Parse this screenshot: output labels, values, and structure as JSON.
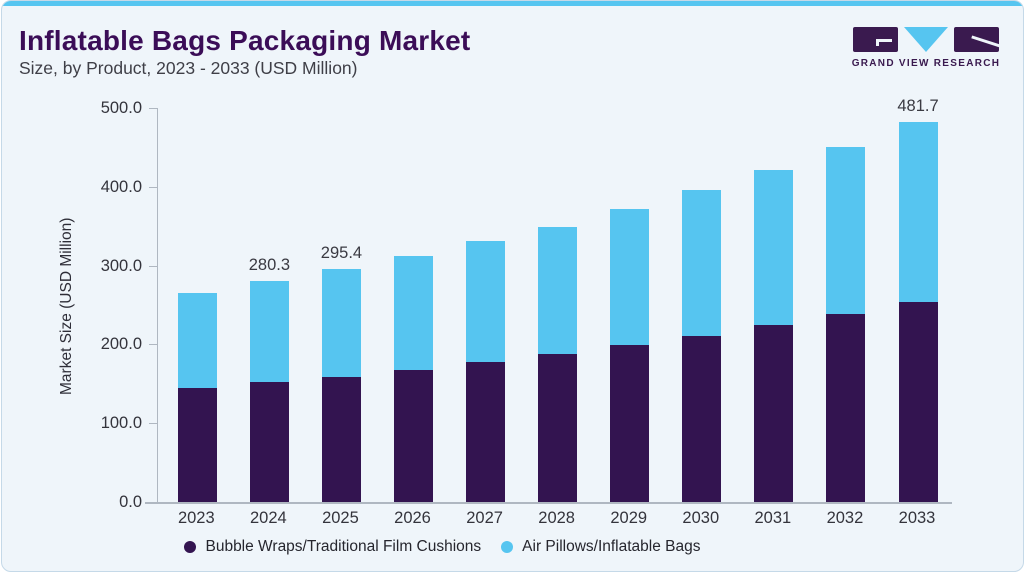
{
  "header": {
    "title": "Inflatable Bags Packaging Market",
    "subtitle": "Size, by Product, 2023 - 2033 (USD Million)",
    "brand": "GRAND VIEW RESEARCH"
  },
  "colors": {
    "accent_blue": "#56C5F0",
    "series_purple": "#331450",
    "series_blue": "#56C5F0",
    "title_purple": "#3B0D57",
    "logo_purple": "#3A1A4F",
    "card_bg": "#EFF5FA",
    "card_border": "#C5D9E8",
    "axis_line": "#AFB7C1"
  },
  "chart_data": {
    "type": "bar",
    "stacked": true,
    "title": "Inflatable Bags Packaging Market",
    "subtitle": "Size, by Product, 2023 - 2033 (USD Million)",
    "xlabel": "",
    "ylabel": "Market Size (USD Million)",
    "categories": [
      "2023",
      "2024",
      "2025",
      "2026",
      "2027",
      "2028",
      "2029",
      "2030",
      "2031",
      "2032",
      "2033"
    ],
    "series": [
      {
        "name": "Bubble Wraps/Traditional Film Cushions",
        "color": "#331450",
        "values": [
          144.4,
          152.5,
          158.8,
          167.8,
          177.1,
          187.3,
          199.2,
          210.7,
          224.2,
          239.1,
          254.0
        ]
      },
      {
        "name": "Air Pillows/Inflatable Bags",
        "color": "#56C5F0",
        "values": [
          121.4,
          127.8,
          136.6,
          144.0,
          153.8,
          161.8,
          172.1,
          184.8,
          197.2,
          211.6,
          227.7
        ]
      }
    ],
    "totals": [
      265.8,
      280.3,
      295.4,
      311.8,
      330.9,
      349.1,
      371.3,
      395.5,
      421.4,
      450.7,
      481.7
    ],
    "data_labels": {
      "2024": "280.3",
      "2025": "295.4",
      "2033": "481.7"
    },
    "ylim": [
      0,
      500
    ],
    "yticks": [
      "0.0",
      "100.0",
      "200.0",
      "300.0",
      "400.0",
      "500.0"
    ],
    "grid": false,
    "legend_position": "bottom"
  }
}
